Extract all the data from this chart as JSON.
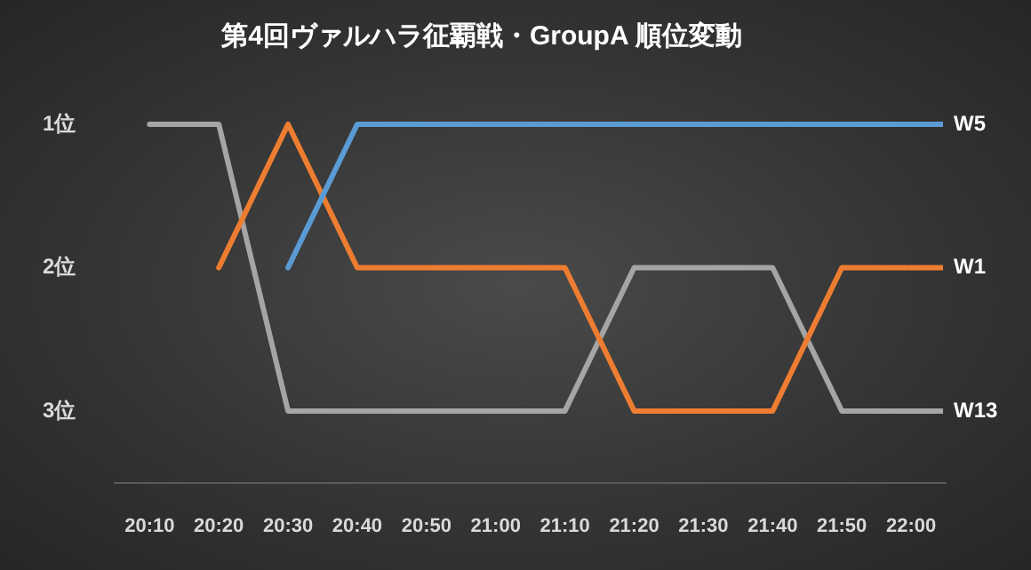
{
  "chart_data": {
    "type": "line",
    "title": "第4回ヴァルハラ征覇戦・GroupA 順位変動",
    "categories": [
      "20:10",
      "20:20",
      "20:30",
      "20:40",
      "20:50",
      "21:00",
      "21:10",
      "21:20",
      "21:30",
      "21:40",
      "21:50",
      "22:00"
    ],
    "series": [
      {
        "name": "W5",
        "color": "#5b9bd5",
        "values": [
          null,
          null,
          2,
          1,
          1,
          1,
          1,
          1,
          1,
          1,
          1,
          1
        ]
      },
      {
        "name": "W1",
        "color": "#ed7d31",
        "values": [
          null,
          2,
          1,
          2,
          2,
          2,
          2,
          3,
          3,
          3,
          2,
          2
        ]
      },
      {
        "name": "W13",
        "color": "#a5a5a5",
        "values": [
          1,
          1,
          3,
          3,
          3,
          3,
          3,
          2,
          2,
          2,
          3,
          3
        ]
      }
    ],
    "ylim": [
      3.5,
      1
    ],
    "yticks": [
      {
        "value": 1,
        "label": "1位"
      },
      {
        "value": 2,
        "label": "2位"
      },
      {
        "value": 3,
        "label": "3位"
      }
    ],
    "grid": false,
    "legend": "right",
    "marker": "none",
    "line_style": "solid"
  }
}
